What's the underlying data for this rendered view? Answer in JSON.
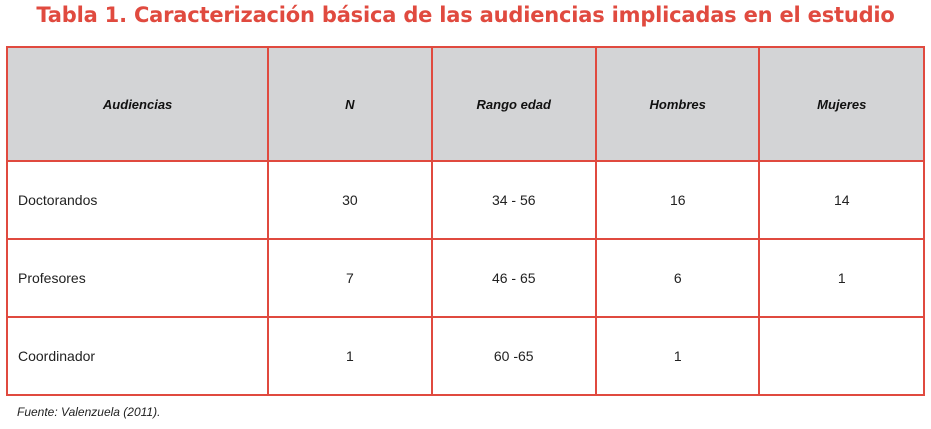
{
  "title": "Tabla 1. Caracterización básica de las audiencias implicadas en el estudio",
  "colors": {
    "accent": "#e04a3f",
    "header_bg": "#d3d4d6"
  },
  "table": {
    "headers": [
      "Audiencias",
      "N",
      "Rango edad",
      "Hombres",
      "Mujeres"
    ],
    "rows": [
      [
        "Doctorandos",
        "30",
        "34 - 56",
        "16",
        "14"
      ],
      [
        "Profesores",
        "7",
        "46 - 65",
        "6",
        "1"
      ],
      [
        "Coordinador",
        "1",
        "60 -65",
        "1",
        ""
      ]
    ]
  },
  "source": "Fuente: Valenzuela (2011)."
}
